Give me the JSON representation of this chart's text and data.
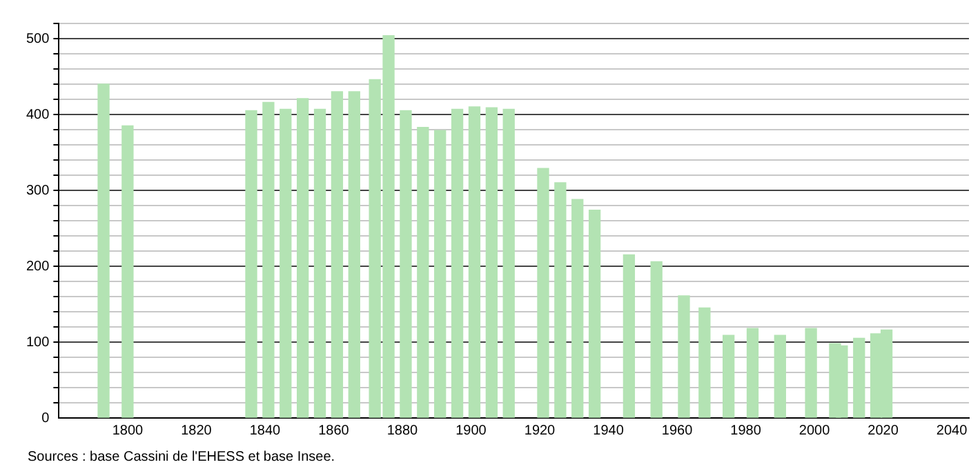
{
  "chart_data": {
    "type": "bar",
    "x": [
      1793,
      1800,
      1836,
      1841,
      1846,
      1851,
      1856,
      1861,
      1866,
      1872,
      1876,
      1881,
      1886,
      1891,
      1896,
      1901,
      1906,
      1911,
      1921,
      1926,
      1931,
      1936,
      1946,
      1954,
      1962,
      1968,
      1975,
      1982,
      1990,
      1999,
      2006,
      2008,
      2013,
      2018,
      2021
    ],
    "values": [
      440,
      385,
      405,
      416,
      407,
      421,
      407,
      430,
      430,
      446,
      504,
      405,
      383,
      379,
      407,
      410,
      409,
      407,
      329,
      310,
      288,
      274,
      215,
      206,
      161,
      145,
      109,
      118,
      109,
      118,
      98,
      95,
      105,
      111,
      116
    ],
    "color": "#b3e3b3",
    "xlim": [
      1780,
      2045
    ],
    "xticks": [
      1800,
      1820,
      1840,
      1860,
      1880,
      1900,
      1920,
      1940,
      1960,
      1980,
      2000,
      2020,
      2040
    ],
    "ylim": [
      0,
      520
    ],
    "yticks": [
      0,
      {
        "value": 20,
        "label": null
      },
      {
        "value": 40,
        "label": null
      },
      {
        "value": 60,
        "label": null
      },
      {
        "value": 80,
        "label": null
      },
      100,
      {
        "value": 120,
        "label": null
      },
      {
        "value": 140,
        "label": null
      },
      {
        "value": 160,
        "label": null
      },
      {
        "value": 180,
        "label": null
      },
      200,
      {
        "value": 220,
        "label": null
      },
      {
        "value": 240,
        "label": null
      },
      {
        "value": 260,
        "label": null
      },
      {
        "value": 280,
        "label": null
      },
      300,
      {
        "value": 320,
        "label": null
      },
      {
        "value": 340,
        "label": null
      },
      {
        "value": 360,
        "label": null
      },
      {
        "value": 380,
        "label": null
      },
      400,
      {
        "value": 420,
        "label": null
      },
      {
        "value": 440,
        "label": null
      },
      {
        "value": 460,
        "label": null
      },
      {
        "value": 480,
        "label": null
      },
      500,
      {
        "value": 520,
        "label": null
      }
    ],
    "grid": "y",
    "annotations": [
      "Sources : base Cassini de l'EHESS et base Insee."
    ]
  }
}
